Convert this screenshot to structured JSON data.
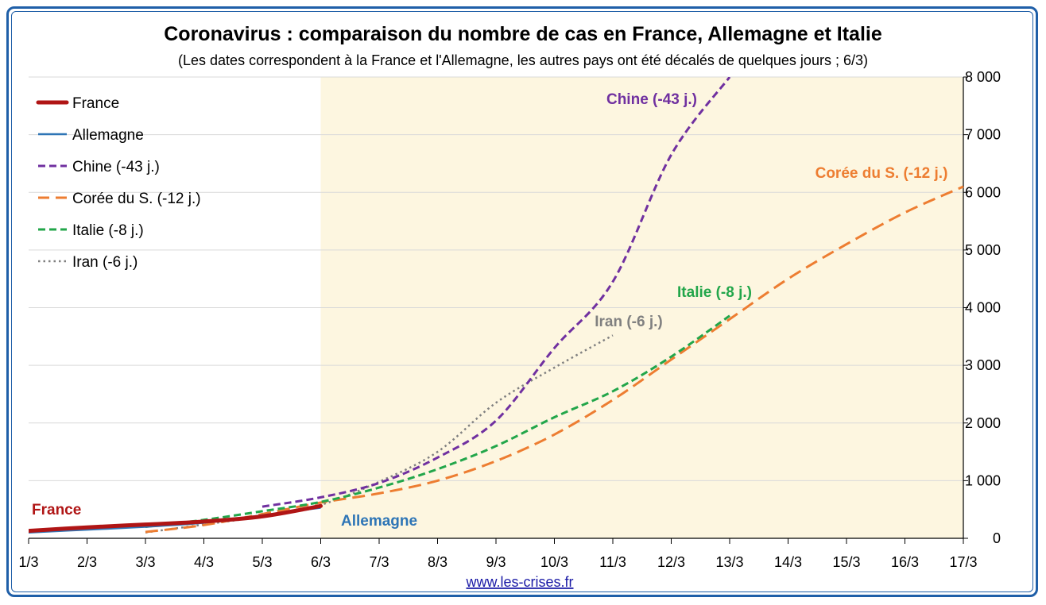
{
  "chart_data": {
    "type": "line",
    "title": "Coronavirus : comparaison du nombre de cas en France, Allemagne et Italie",
    "subtitle": "(Les dates correspondent à la France et l'Allemagne, les autres pays ont été décalés de quelques jours ; 6/3)",
    "categories": [
      "1/3",
      "2/3",
      "3/3",
      "4/3",
      "5/3",
      "6/3",
      "7/3",
      "8/3",
      "9/3",
      "10/3",
      "11/3",
      "12/3",
      "13/3",
      "14/3",
      "15/3",
      "16/3",
      "17/3"
    ],
    "y_ticks": [
      "0",
      "1 000",
      "2 000",
      "3 000",
      "4 000",
      "5 000",
      "6 000",
      "7 000",
      "8 000"
    ],
    "ylim": [
      0,
      8000
    ],
    "y_axis_side": "right",
    "grid": true,
    "highlight_region": {
      "from_index": 5,
      "to_index": 16,
      "color": "#fdf6e0"
    },
    "series": [
      {
        "name": "France",
        "color": "#b01515",
        "style": "solid-thick",
        "points": [
          [
            0,
            130
          ],
          [
            1,
            190
          ],
          [
            2,
            240
          ],
          [
            3,
            290
          ],
          [
            4,
            380
          ],
          [
            5,
            560
          ]
        ]
      },
      {
        "name": "Allemagne",
        "color": "#2e75b6",
        "style": "solid",
        "points": [
          [
            0,
            100
          ],
          [
            1,
            150
          ],
          [
            2,
            200
          ],
          [
            3,
            270
          ],
          [
            4,
            400
          ],
          [
            5,
            530
          ]
        ]
      },
      {
        "name": "Chine (-43 j.)",
        "color": "#7030a0",
        "style": "dashed",
        "points": [
          [
            4,
            550
          ],
          [
            5,
            710
          ],
          [
            6,
            960
          ],
          [
            7,
            1400
          ],
          [
            8,
            2040
          ],
          [
            9,
            3300
          ],
          [
            10,
            4450
          ],
          [
            11,
            6650
          ],
          [
            12,
            8000
          ]
        ]
      },
      {
        "name": "Corée du S. (-12 j.)",
        "color": "#ed7d31",
        "style": "long-dashed",
        "points": [
          [
            2,
            110
          ],
          [
            3,
            230
          ],
          [
            4,
            420
          ],
          [
            5,
            620
          ],
          [
            6,
            780
          ],
          [
            7,
            1000
          ],
          [
            8,
            1340
          ],
          [
            9,
            1800
          ],
          [
            10,
            2400
          ],
          [
            11,
            3100
          ],
          [
            12,
            3800
          ],
          [
            13,
            4500
          ],
          [
            14,
            5100
          ],
          [
            15,
            5650
          ],
          [
            16,
            6100
          ]
        ]
      },
      {
        "name": "Italie (-8 j.)",
        "color": "#22a64a",
        "style": "dashed",
        "points": [
          [
            2,
            200
          ],
          [
            3,
            320
          ],
          [
            4,
            470
          ],
          [
            5,
            630
          ],
          [
            6,
            880
          ],
          [
            7,
            1200
          ],
          [
            8,
            1600
          ],
          [
            9,
            2100
          ],
          [
            10,
            2550
          ],
          [
            11,
            3150
          ],
          [
            12,
            3860
          ]
        ]
      },
      {
        "name": "Iran (-6 j.)",
        "color": "#808080",
        "style": "dotted",
        "points": [
          [
            2,
            100
          ],
          [
            3,
            240
          ],
          [
            4,
            380
          ],
          [
            5,
            580
          ],
          [
            6,
            980
          ],
          [
            7,
            1500
          ],
          [
            8,
            2350
          ],
          [
            9,
            2960
          ],
          [
            10,
            3520
          ]
        ]
      }
    ],
    "labels": {
      "france": "France",
      "allemagne": "Allemagne",
      "chine": "Chine (-43 j.)",
      "coree": "Corée du S. (-12 j.)",
      "italie": "Italie (-8 j.)",
      "iran": "Iran (-6 j.)"
    },
    "legend_placement": "top-left"
  },
  "source": "www.les-crises.fr"
}
